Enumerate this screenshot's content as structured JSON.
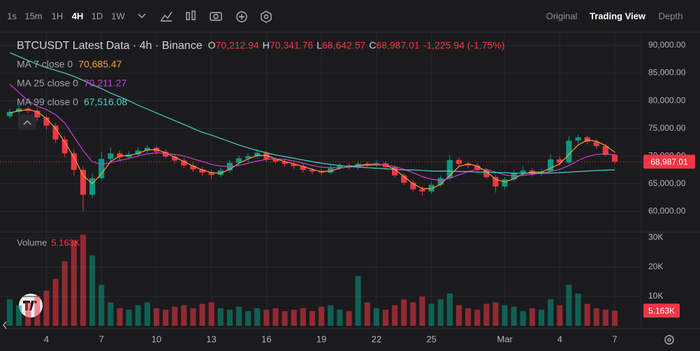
{
  "toolbar": {
    "intervals": [
      "1s",
      "15m",
      "1H",
      "4H",
      "1D",
      "1W"
    ],
    "active_interval_index": 3,
    "views": [
      "Original",
      "Trading View",
      "Depth"
    ],
    "active_view_index": 1
  },
  "chart_data": {
    "type": "candlestick",
    "title": "BTCUSDT Latest Data · 4h · Binance",
    "ohlc_legend": [
      {
        "key": "O",
        "value": "70,212.94"
      },
      {
        "key": "H",
        "value": "70,341.76"
      },
      {
        "key": "L",
        "value": "68,642.57"
      },
      {
        "key": "C",
        "value": "68,987.01"
      }
    ],
    "change_label": "-1,225.94 (-1.75%)",
    "last_close_label": "68,987.01",
    "up_color": "#089981",
    "down_color": "#f23645",
    "grid": true,
    "categories": [
      null,
      null,
      null,
      null,
      "4",
      null,
      null,
      null,
      null,
      null,
      "7",
      null,
      null,
      null,
      null,
      null,
      "10",
      null,
      null,
      null,
      null,
      null,
      "13",
      null,
      null,
      null,
      null,
      null,
      "16",
      null,
      null,
      null,
      null,
      null,
      "19",
      null,
      null,
      null,
      null,
      null,
      "22",
      null,
      null,
      null,
      null,
      null,
      "25",
      null,
      null,
      null,
      null,
      null,
      null,
      null,
      "Mar",
      null,
      null,
      null,
      null,
      null,
      "4",
      null,
      null,
      null,
      null,
      null,
      "7"
    ],
    "open": [
      77200,
      78000,
      78600,
      78200,
      77000,
      75500,
      73000,
      70500,
      67500,
      63000,
      66000,
      69500,
      70500,
      69800,
      70300,
      71000,
      71500,
      70800,
      69900,
      69200,
      68300,
      67600,
      67000,
      66600,
      67400,
      68800,
      69600,
      70000,
      70600,
      69400,
      69000,
      68600,
      68200,
      67500,
      67200,
      67000,
      67800,
      68300,
      68000,
      68600,
      68400,
      68700,
      68000,
      66500,
      65200,
      64000,
      63600,
      64800,
      66000,
      69300,
      68600,
      68300,
      67500,
      66200,
      64500,
      65800,
      67000,
      67400,
      66800,
      67200,
      69400,
      68800,
      72800,
      73400,
      72600,
      71800,
      70212.94
    ],
    "high": [
      78500,
      79200,
      79000,
      78700,
      77400,
      76000,
      73600,
      71200,
      68200,
      66800,
      70800,
      71600,
      71000,
      70900,
      71600,
      72000,
      71900,
      71200,
      70400,
      69700,
      68800,
      68000,
      67500,
      67900,
      69300,
      70100,
      70500,
      71300,
      70900,
      69800,
      69400,
      69000,
      68600,
      67900,
      67600,
      68300,
      68800,
      68700,
      69100,
      69000,
      69200,
      69000,
      68300,
      66900,
      65600,
      64500,
      65300,
      66500,
      70200,
      69800,
      69000,
      68700,
      67800,
      66600,
      66200,
      67500,
      68200,
      67800,
      67700,
      70300,
      69900,
      73700,
      73900,
      73700,
      73000,
      72200,
      70341.76
    ],
    "low": [
      76800,
      77600,
      77700,
      76400,
      74800,
      72400,
      69800,
      66500,
      60000,
      62400,
      65600,
      69000,
      69200,
      69400,
      69900,
      70600,
      70300,
      69500,
      68700,
      67800,
      67100,
      66400,
      65800,
      66200,
      67000,
      68400,
      69100,
      69600,
      69000,
      68600,
      68100,
      67700,
      67000,
      66700,
      66500,
      66700,
      67400,
      67600,
      67500,
      68000,
      68000,
      67600,
      66100,
      64800,
      63600,
      62900,
      63200,
      64400,
      65700,
      68200,
      67800,
      67100,
      65900,
      63400,
      64100,
      65400,
      66600,
      66300,
      66400,
      66900,
      68300,
      68600,
      72200,
      72100,
      71300,
      70000,
      68642.57
    ],
    "close": [
      78000,
      78600,
      78200,
      77000,
      75500,
      73000,
      70500,
      67500,
      63000,
      66000,
      69500,
      70500,
      69800,
      70300,
      71000,
      71500,
      70800,
      69900,
      69200,
      68300,
      67600,
      67000,
      66600,
      67400,
      68800,
      69600,
      70000,
      70600,
      69400,
      69000,
      68600,
      68200,
      67500,
      67200,
      67000,
      67800,
      68300,
      68000,
      68600,
      68400,
      68700,
      68000,
      66500,
      65200,
      64000,
      63600,
      64800,
      66000,
      69300,
      68600,
      68300,
      67500,
      66200,
      64500,
      65800,
      67000,
      67400,
      66800,
      67200,
      69400,
      68800,
      72800,
      73400,
      72600,
      71800,
      70200,
      68987.01
    ],
    "ylim": [
      56500,
      91900
    ],
    "yticks": [
      {
        "value": 60000,
        "label": "60,000.00"
      },
      {
        "value": 65000,
        "label": "65,000.00"
      },
      {
        "value": 70000,
        "label": "70,000.00"
      },
      {
        "value": 75000,
        "label": "75,000.00"
      },
      {
        "value": 80000,
        "label": "80,000.00"
      },
      {
        "value": 85000,
        "label": "85,000.00"
      },
      {
        "value": 90000,
        "label": "90,000.00"
      }
    ],
    "ma_series": [
      {
        "name": "MA 7 close 0",
        "color": "#f7a23b",
        "value_label": "70,685.47",
        "values": [
          77800,
          78200,
          78400,
          78000,
          76800,
          75000,
          72500,
          69800,
          66500,
          65000,
          66800,
          69000,
          70000,
          70100,
          70500,
          71100,
          71200,
          70600,
          69800,
          69000,
          68200,
          67500,
          67000,
          66900,
          67600,
          68700,
          69500,
          70100,
          70100,
          69500,
          69000,
          68600,
          68100,
          67600,
          67200,
          67300,
          67800,
          68100,
          68300,
          68500,
          68500,
          68400,
          67600,
          66300,
          65000,
          64100,
          64100,
          64900,
          66500,
          68100,
          68600,
          68200,
          67200,
          65800,
          65300,
          65900,
          66800,
          67100,
          67100,
          67800,
          68600,
          70300,
          72000,
          72900,
          72700,
          71900,
          70685.47
        ]
      },
      {
        "name": "MA 25 close 0",
        "color": "#c740d6",
        "value_label": "70,211.27",
        "values": [
          83000,
          81500,
          80000,
          79000,
          78400,
          77500,
          76000,
          73500,
          71000,
          69000,
          68500,
          68800,
          69200,
          69600,
          70000,
          70400,
          70600,
          70500,
          70300,
          70000,
          69500,
          69000,
          68500,
          68200,
          68100,
          68300,
          68700,
          69100,
          69400,
          69500,
          69400,
          69100,
          68700,
          68300,
          68000,
          67900,
          67900,
          68000,
          68200,
          68300,
          68400,
          68400,
          68100,
          67600,
          67000,
          66300,
          65800,
          65600,
          66000,
          66600,
          67200,
          67600,
          67600,
          67100,
          66600,
          66400,
          66500,
          66700,
          66900,
          67200,
          67600,
          68300,
          69200,
          69900,
          70300,
          70400,
          70211.27
        ]
      },
      {
        "name": "MA 99 close 0",
        "color": "#4fd1c5",
        "value_label": "67,516.08",
        "values": [
          88700,
          88000,
          87300,
          86600,
          86000,
          85500,
          85000,
          84400,
          83700,
          82900,
          82200,
          81400,
          80700,
          80000,
          79200,
          78500,
          77800,
          77100,
          76400,
          75700,
          75000,
          74300,
          73800,
          73200,
          72600,
          72000,
          71500,
          71000,
          70600,
          70200,
          69900,
          69600,
          69300,
          69000,
          68700,
          68500,
          68300,
          68100,
          68000,
          67900,
          67800,
          67700,
          67600,
          67500,
          67500,
          67400,
          67300,
          67300,
          67300,
          67200,
          67200,
          67100,
          67100,
          67000,
          67000,
          66900,
          66900,
          66900,
          66900,
          66900,
          67000,
          67100,
          67200,
          67300,
          67400,
          67450,
          67516.08
        ]
      }
    ],
    "volume": {
      "name": "Volume",
      "last_label": "5.163K",
      "up_color": "rgba(8,153,129,0.55)",
      "down_color": "rgba(242,54,69,0.55)",
      "values": [
        9000,
        7000,
        8000,
        10000,
        12000,
        16000,
        22000,
        29000,
        31000,
        24000,
        14000,
        8000,
        6000,
        5500,
        7000,
        8000,
        6000,
        5500,
        6500,
        7000,
        6000,
        7500,
        8000,
        6000,
        5500,
        6500,
        5000,
        6000,
        5500,
        6000,
        5000,
        5500,
        6000,
        5000,
        6500,
        7000,
        5500,
        5000,
        17000,
        8000,
        6000,
        5500,
        7000,
        9000,
        8000,
        10000,
        7500,
        9000,
        11000,
        7000,
        6000,
        5500,
        7500,
        8000,
        7000,
        6500,
        5000,
        6000,
        5500,
        9000,
        7000,
        14000,
        11000,
        7500,
        6000,
        5500,
        5163
      ],
      "ylim": [
        0,
        31900
      ],
      "yticks": [
        {
          "value": 10000,
          "label": "10K"
        },
        {
          "value": 20000,
          "label": "20K"
        },
        {
          "value": 30000,
          "label": "30K"
        }
      ]
    }
  }
}
